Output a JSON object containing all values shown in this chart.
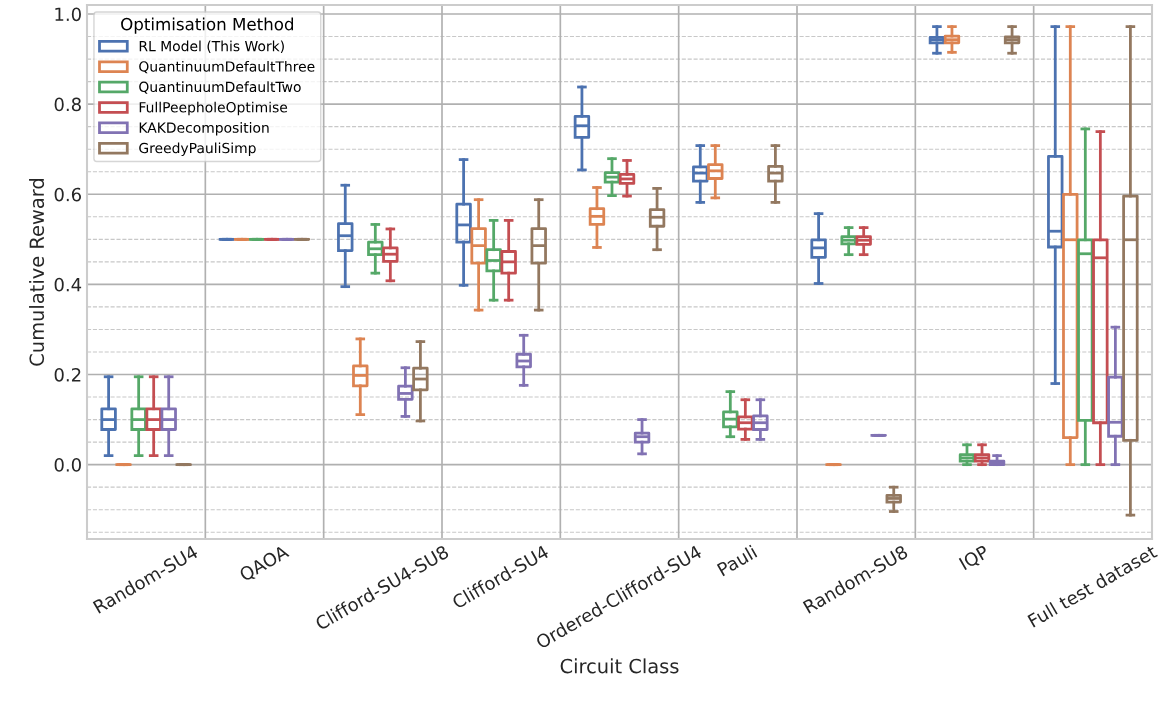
{
  "chart_data": {
    "type": "box",
    "xlabel": "Circuit Class",
    "ylabel": "Cumulative Reward",
    "legend_title": "Optimisation Method",
    "categories": [
      "Random-SU4",
      "QAOA",
      "Clifford-SU4-SU8",
      "Clifford-SU4",
      "Ordered-Clifford-SU4",
      "Pauli",
      "Random-SU8",
      "IQP",
      "Full test dataset"
    ],
    "ylim": [
      -0.165,
      1.02
    ],
    "yticks": [
      {
        "value": -0.15,
        "label": null
      },
      {
        "value": -0.1,
        "label": null
      },
      {
        "value": -0.05,
        "label": null
      },
      {
        "value": 0,
        "label": "0.0"
      },
      {
        "value": 0.05,
        "label": null
      },
      {
        "value": 0.1,
        "label": null
      },
      {
        "value": 0.15,
        "label": null
      },
      0.2,
      {
        "value": 0.25,
        "label": null
      },
      {
        "value": 0.3,
        "label": null
      },
      {
        "value": 0.35,
        "label": null
      },
      0.4,
      {
        "value": 0.45,
        "label": null
      },
      {
        "value": 0.5,
        "label": null
      },
      {
        "value": 0.55,
        "label": null
      },
      0.6,
      {
        "value": 0.65,
        "label": null
      },
      {
        "value": 0.7,
        "label": null
      },
      {
        "value": 0.75,
        "label": null
      },
      0.8,
      {
        "value": 0.85,
        "label": null
      },
      {
        "value": 0.9,
        "label": null
      },
      {
        "value": 0.95,
        "label": null
      },
      {
        "value": 1,
        "label": "1.0"
      }
    ],
    "grid": true,
    "legend": "top left",
    "series": [
      {
        "name": "RL Model (This Work)",
        "color": "#4c72b0",
        "boxes": [
          {
            "low": 0.02,
            "q1": 0.078,
            "median": 0.1,
            "q3": 0.124,
            "high": 0.195
          },
          {
            "low": 0.5,
            "q1": 0.5,
            "median": 0.5,
            "q3": 0.5,
            "high": 0.5
          },
          {
            "low": 0.395,
            "q1": 0.475,
            "median": 0.508,
            "q3": 0.535,
            "high": 0.62
          },
          {
            "low": 0.398,
            "q1": 0.494,
            "median": 0.532,
            "q3": 0.578,
            "high": 0.677
          },
          {
            "low": 0.654,
            "q1": 0.726,
            "median": 0.752,
            "q3": 0.773,
            "high": 0.838
          },
          {
            "low": 0.582,
            "q1": 0.629,
            "median": 0.647,
            "q3": 0.661,
            "high": 0.708
          },
          {
            "low": 0.402,
            "q1": 0.46,
            "median": 0.481,
            "q3": 0.499,
            "high": 0.557
          },
          {
            "low": 0.913,
            "q1": 0.936,
            "median": 0.943,
            "q3": 0.948,
            "high": 0.972
          },
          {
            "low": 0.18,
            "q1": 0.483,
            "median": 0.518,
            "q3": 0.684,
            "high": 0.972
          }
        ]
      },
      {
        "name": "QuantinuumDefaultThree",
        "color": "#dd8452",
        "boxes": [
          {
            "low": 0.0,
            "q1": 0.0,
            "median": 0.0,
            "q3": 0.0,
            "high": 0.0
          },
          {
            "low": 0.5,
            "q1": 0.5,
            "median": 0.5,
            "q3": 0.5,
            "high": 0.5
          },
          {
            "low": 0.111,
            "q1": 0.175,
            "median": 0.198,
            "q3": 0.219,
            "high": 0.279
          },
          {
            "low": 0.343,
            "q1": 0.447,
            "median": 0.486,
            "q3": 0.524,
            "high": 0.588
          },
          {
            "low": 0.482,
            "q1": 0.533,
            "median": 0.551,
            "q3": 0.568,
            "high": 0.615
          },
          {
            "low": 0.592,
            "q1": 0.635,
            "median": 0.652,
            "q3": 0.666,
            "high": 0.708
          },
          {
            "low": 0.0,
            "q1": 0.0,
            "median": 0.0,
            "q3": 0.0,
            "high": 0.0
          },
          {
            "low": 0.915,
            "q1": 0.936,
            "median": 0.943,
            "q3": 0.951,
            "high": 0.972
          },
          {
            "low": 0.0,
            "q1": 0.06,
            "median": 0.499,
            "q3": 0.6,
            "high": 0.972
          }
        ]
      },
      {
        "name": "QuantinuumDefaultTwo",
        "color": "#55a868",
        "boxes": [
          {
            "low": 0.02,
            "q1": 0.078,
            "median": 0.1,
            "q3": 0.124,
            "high": 0.195
          },
          {
            "low": 0.5,
            "q1": 0.5,
            "median": 0.5,
            "q3": 0.5,
            "high": 0.5
          },
          {
            "low": 0.425,
            "q1": 0.466,
            "median": 0.479,
            "q3": 0.494,
            "high": 0.533
          },
          {
            "low": 0.365,
            "q1": 0.43,
            "median": 0.453,
            "q3": 0.477,
            "high": 0.542
          },
          {
            "low": 0.597,
            "q1": 0.627,
            "median": 0.638,
            "q3": 0.648,
            "high": 0.679
          },
          {
            "low": 0.062,
            "q1": 0.084,
            "median": 0.101,
            "q3": 0.117,
            "high": 0.162
          },
          {
            "low": 0.466,
            "q1": 0.49,
            "median": 0.498,
            "q3": 0.506,
            "high": 0.526
          },
          {
            "low": 0.0,
            "q1": 0.008,
            "median": 0.015,
            "q3": 0.022,
            "high": 0.044
          },
          {
            "low": 0.0,
            "q1": 0.098,
            "median": 0.468,
            "q3": 0.499,
            "high": 0.745
          }
        ]
      },
      {
        "name": "FullPeepholeOptimise",
        "color": "#c44e52",
        "boxes": [
          {
            "low": 0.02,
            "q1": 0.078,
            "median": 0.1,
            "q3": 0.124,
            "high": 0.195
          },
          {
            "low": 0.5,
            "q1": 0.5,
            "median": 0.5,
            "q3": 0.5,
            "high": 0.5
          },
          {
            "low": 0.408,
            "q1": 0.451,
            "median": 0.467,
            "q3": 0.481,
            "high": 0.523
          },
          {
            "low": 0.365,
            "q1": 0.425,
            "median": 0.45,
            "q3": 0.473,
            "high": 0.542
          },
          {
            "low": 0.596,
            "q1": 0.624,
            "median": 0.634,
            "q3": 0.644,
            "high": 0.675
          },
          {
            "low": 0.056,
            "q1": 0.079,
            "median": 0.093,
            "q3": 0.106,
            "high": 0.144
          },
          {
            "low": 0.466,
            "q1": 0.489,
            "median": 0.498,
            "q3": 0.506,
            "high": 0.526
          },
          {
            "low": 0.0,
            "q1": 0.008,
            "median": 0.015,
            "q3": 0.022,
            "high": 0.044
          },
          {
            "low": 0.0,
            "q1": 0.093,
            "median": 0.459,
            "q3": 0.499,
            "high": 0.739
          }
        ]
      },
      {
        "name": "KAKDecomposition",
        "color": "#8172b3",
        "boxes": [
          {
            "low": 0.02,
            "q1": 0.078,
            "median": 0.1,
            "q3": 0.124,
            "high": 0.195
          },
          {
            "low": 0.5,
            "q1": 0.5,
            "median": 0.5,
            "q3": 0.5,
            "high": 0.5
          },
          {
            "low": 0.107,
            "q1": 0.145,
            "median": 0.158,
            "q3": 0.174,
            "high": 0.215
          },
          {
            "low": 0.176,
            "q1": 0.217,
            "median": 0.23,
            "q3": 0.245,
            "high": 0.287
          },
          {
            "low": 0.024,
            "q1": 0.05,
            "median": 0.062,
            "q3": 0.07,
            "high": 0.1
          },
          {
            "low": 0.056,
            "q1": 0.078,
            "median": 0.093,
            "q3": 0.108,
            "high": 0.144
          },
          {
            "low": 0.065,
            "q1": 0.065,
            "median": 0.065,
            "q3": 0.065,
            "high": 0.065
          },
          {
            "low": 0.0,
            "q1": 0.0,
            "median": 0.003,
            "q3": 0.008,
            "high": 0.02
          },
          {
            "low": 0.0,
            "q1": 0.063,
            "median": 0.094,
            "q3": 0.194,
            "high": 0.305
          }
        ]
      },
      {
        "name": "GreedyPauliSimp",
        "color": "#937860",
        "boxes": [
          {
            "low": 0.0,
            "q1": 0.0,
            "median": 0.0,
            "q3": 0.0,
            "high": 0.0
          },
          {
            "low": 0.5,
            "q1": 0.5,
            "median": 0.5,
            "q3": 0.5,
            "high": 0.5
          },
          {
            "low": 0.097,
            "q1": 0.166,
            "median": 0.19,
            "q3": 0.214,
            "high": 0.273
          },
          {
            "low": 0.343,
            "q1": 0.447,
            "median": 0.486,
            "q3": 0.524,
            "high": 0.588
          },
          {
            "low": 0.477,
            "q1": 0.529,
            "median": 0.549,
            "q3": 0.566,
            "high": 0.613
          },
          {
            "low": 0.582,
            "q1": 0.629,
            "median": 0.647,
            "q3": 0.662,
            "high": 0.708
          },
          {
            "low": -0.104,
            "q1": -0.083,
            "median": -0.075,
            "q3": -0.068,
            "high": -0.05
          },
          {
            "low": 0.913,
            "q1": 0.936,
            "median": 0.943,
            "q3": 0.949,
            "high": 0.972
          },
          {
            "low": -0.112,
            "q1": 0.054,
            "median": 0.499,
            "q3": 0.596,
            "high": 0.972
          }
        ]
      }
    ]
  }
}
